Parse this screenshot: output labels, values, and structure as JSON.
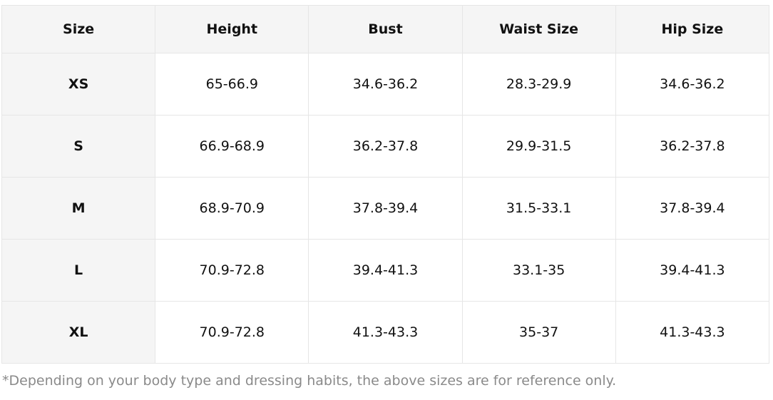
{
  "table": {
    "header": [
      "Size",
      "Height",
      "Bust",
      "Waist Size",
      "Hip Size"
    ],
    "rows": [
      [
        "XS",
        "65-66.9",
        "34.6-36.2",
        "28.3-29.9",
        "34.6-36.2"
      ],
      [
        "S",
        "66.9-68.9",
        "36.2-37.8",
        "29.9-31.5",
        "36.2-37.8"
      ],
      [
        "M",
        "68.9-70.9",
        "37.8-39.4",
        "31.5-33.1",
        "37.8-39.4"
      ],
      [
        "L",
        "70.9-72.8",
        "39.4-41.3",
        "33.1-35",
        "39.4-41.3"
      ],
      [
        "XL",
        "70.9-72.8",
        "41.3-43.3",
        "35-37",
        "41.3-43.3"
      ]
    ]
  },
  "note": "*Depending on your body type and dressing habits, the above sizes are for reference only."
}
